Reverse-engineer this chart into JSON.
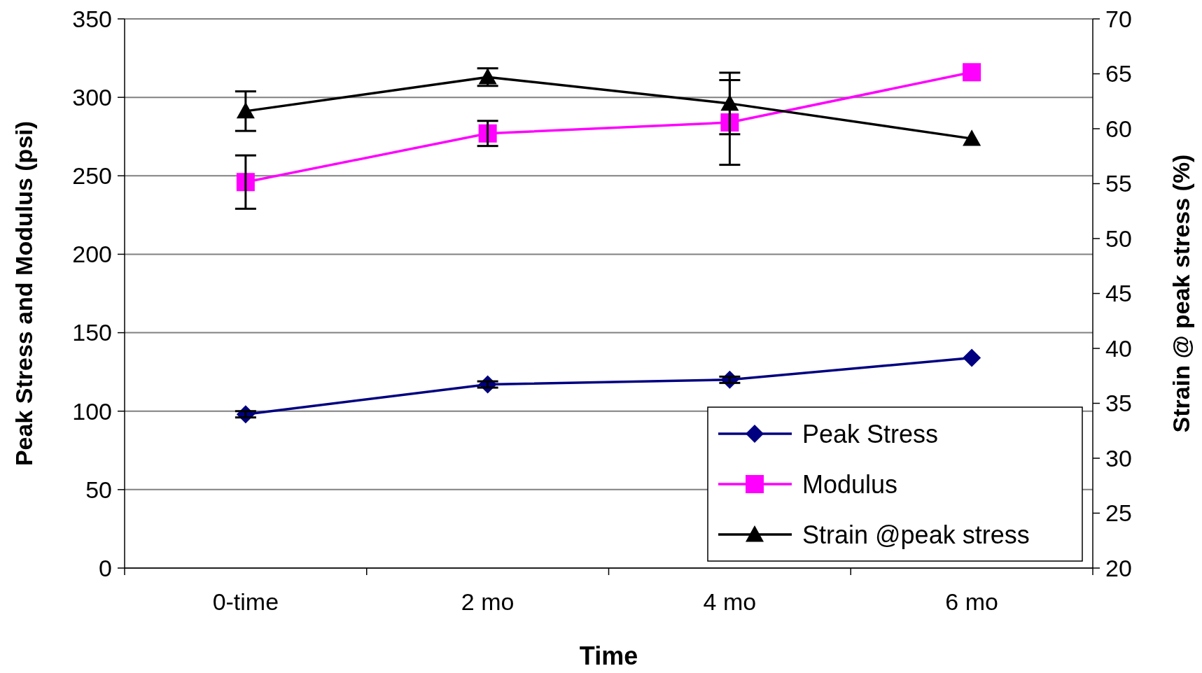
{
  "chart_data": {
    "type": "line",
    "xlabel": "Time",
    "ylabel": "Peak Stress and Modulus (psi)",
    "y2label": "Strain @ peak stress (%)",
    "categories": [
      "0-time",
      "2 mo",
      "4 mo",
      "6 mo"
    ],
    "series": [
      {
        "name": "Peak Stress",
        "color": "#000080",
        "marker": "diamond",
        "values": [
          98,
          117,
          120,
          134
        ],
        "errors": [
          2,
          2,
          2,
          null
        ]
      },
      {
        "name": "Modulus",
        "color": "#ff00ff",
        "marker": "square",
        "values": [
          246,
          277,
          284,
          316
        ],
        "errors": [
          17,
          8,
          27,
          null
        ]
      },
      {
        "name": "Strain @peak stress",
        "color": "#000000",
        "marker": "triangle",
        "axis": "y2",
        "values": [
          61.6,
          64.7,
          62.3,
          59.1
        ],
        "errors": [
          1.8,
          0.8,
          2.8,
          null
        ]
      }
    ],
    "ylim": [
      0,
      350
    ],
    "yticks": [
      0,
      50,
      100,
      150,
      200,
      250,
      300,
      350
    ],
    "y2lim": [
      20,
      70
    ],
    "y2ticks": [
      20,
      25,
      30,
      35,
      40,
      45,
      50,
      55,
      60,
      65,
      70
    ],
    "grid": "y",
    "legend": "bottom right",
    "line_style": "solid"
  }
}
